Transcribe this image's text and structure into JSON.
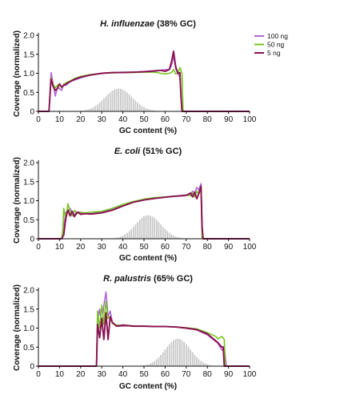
{
  "colors": {
    "100 ng": "#b266d6",
    "50 ng": "#77c41f",
    "5 ng": "#8a1150",
    "histogram": "#c8c8c8",
    "axis": "#111111"
  },
  "chart_data": [
    {
      "type": "line",
      "title_italic": "H. influenzae",
      "title_rest": " (38% GC)",
      "xlabel": "GC content (%)",
      "ylabel": "Coverage  (normalized)",
      "xlim": [
        0,
        100
      ],
      "ylim": [
        0,
        2.0
      ],
      "xticks": [
        "0",
        "10",
        "20",
        "30",
        "40",
        "50",
        "60",
        "70",
        "80",
        "90",
        "100"
      ],
      "yticks": [
        "0",
        "0.5",
        "1.0",
        "1.5",
        "2.0"
      ],
      "legend": {
        "position": "top-right",
        "entries": [
          "100 ng",
          "50 ng",
          "5 ng"
        ]
      },
      "histogram": {
        "mean": 38,
        "sd": 6.5,
        "peak": 0.6,
        "min": 21,
        "max": 55
      },
      "series": [
        {
          "name": "100 ng",
          "x": [
            0,
            5,
            6,
            7,
            8,
            9,
            10,
            11,
            12,
            13,
            15,
            17,
            20,
            25,
            30,
            35,
            40,
            45,
            50,
            55,
            58,
            60,
            62,
            63,
            64,
            65,
            66,
            67,
            67.5,
            68,
            70,
            80,
            90,
            100
          ],
          "y": [
            0,
            0,
            1.02,
            0.72,
            0.4,
            0.62,
            0.6,
            0.55,
            0.72,
            0.68,
            0.78,
            0.82,
            0.88,
            0.96,
            1.0,
            1.02,
            1.03,
            1.03,
            1.05,
            1.07,
            1.08,
            1.1,
            1.1,
            1.2,
            1.45,
            1.12,
            1.0,
            0.9,
            0.35,
            0,
            0,
            0,
            0,
            0
          ]
        },
        {
          "name": "50 ng",
          "x": [
            0,
            5,
            6,
            7,
            8,
            9,
            10,
            11,
            12,
            13,
            15,
            17,
            20,
            25,
            30,
            35,
            40,
            45,
            50,
            55,
            58,
            60,
            62,
            63,
            64,
            65,
            66,
            67,
            68,
            68.5,
            70,
            80,
            90,
            100
          ],
          "y": [
            0,
            0,
            0.88,
            0.7,
            0.62,
            0.68,
            0.72,
            0.62,
            0.7,
            0.75,
            0.8,
            0.86,
            0.92,
            0.97,
            1.0,
            1.01,
            1.02,
            1.02,
            1.03,
            1.03,
            1.0,
            0.98,
            1.0,
            1.02,
            1.1,
            0.98,
            1.0,
            1.15,
            1.0,
            0,
            0,
            0,
            0,
            0
          ]
        },
        {
          "name": "5 ng",
          "x": [
            0,
            5,
            6,
            7,
            8,
            9,
            10,
            11,
            12,
            13,
            15,
            17,
            20,
            25,
            30,
            35,
            40,
            45,
            50,
            55,
            58,
            60,
            62,
            63,
            64,
            65,
            66,
            67,
            67.5,
            68,
            70,
            80,
            90,
            100
          ],
          "y": [
            0,
            0,
            0.85,
            0.65,
            0.55,
            0.6,
            0.72,
            0.64,
            0.68,
            0.72,
            0.78,
            0.84,
            0.9,
            0.96,
            1.0,
            1.02,
            1.02,
            1.03,
            1.04,
            1.06,
            1.08,
            1.05,
            1.1,
            1.3,
            1.58,
            1.18,
            1.0,
            1.02,
            0.4,
            0,
            0,
            0,
            0,
            0
          ]
        }
      ]
    },
    {
      "type": "line",
      "title_italic": "E. coli",
      "title_rest": " (51% GC)",
      "xlabel": "GC content (%)",
      "ylabel": "Coverage  (normalized)",
      "xlim": [
        0,
        100
      ],
      "ylim": [
        0,
        2.0
      ],
      "xticks": [
        "0",
        "10",
        "20",
        "30",
        "40",
        "50",
        "60",
        "70",
        "80",
        "90",
        "100"
      ],
      "yticks": [
        "0",
        "0.5",
        "1.0",
        "1.5",
        "2.0"
      ],
      "legend": null,
      "histogram": {
        "mean": 52,
        "sd": 6,
        "peak": 0.62,
        "min": 36,
        "max": 68
      },
      "series": [
        {
          "name": "100 ng",
          "x": [
            0,
            11,
            12,
            13,
            14,
            15,
            16,
            17,
            18,
            19,
            20,
            22,
            25,
            30,
            35,
            40,
            45,
            50,
            55,
            60,
            65,
            68,
            70,
            72,
            73,
            74,
            75,
            76,
            77,
            77.5,
            78,
            80,
            90,
            100
          ],
          "y": [
            0,
            0,
            0.3,
            0.7,
            0.72,
            0.8,
            0.7,
            0.62,
            0.72,
            0.66,
            0.68,
            0.66,
            0.66,
            0.7,
            0.78,
            0.88,
            0.97,
            1.03,
            1.07,
            1.1,
            1.12,
            1.14,
            1.15,
            1.18,
            1.25,
            1.2,
            1.35,
            1.28,
            1.45,
            0.4,
            0,
            0,
            0,
            0
          ]
        },
        {
          "name": "50 ng",
          "x": [
            0,
            11,
            11.5,
            12,
            13,
            14,
            15,
            16,
            17,
            18,
            19,
            20,
            22,
            25,
            30,
            35,
            40,
            45,
            50,
            55,
            60,
            65,
            68,
            70,
            72,
            73,
            74,
            75,
            76,
            77,
            77.5,
            80,
            90,
            100
          ],
          "y": [
            0,
            0,
            0.2,
            0.8,
            0.5,
            0.92,
            0.72,
            0.6,
            0.74,
            0.7,
            0.66,
            0.7,
            0.68,
            0.7,
            0.72,
            0.8,
            0.9,
            0.98,
            1.04,
            1.08,
            1.1,
            1.12,
            1.13,
            1.15,
            1.13,
            1.2,
            1.1,
            1.25,
            1.18,
            1.32,
            0,
            0,
            0,
            0
          ]
        },
        {
          "name": "5 ng",
          "x": [
            0,
            11,
            12,
            13,
            14,
            15,
            16,
            17,
            18,
            19,
            20,
            22,
            25,
            30,
            35,
            40,
            45,
            50,
            55,
            60,
            65,
            68,
            70,
            72,
            73,
            74,
            75,
            76,
            77,
            77.5,
            78,
            80,
            90,
            100
          ],
          "y": [
            0,
            0,
            0.1,
            0.55,
            0.75,
            0.6,
            0.72,
            0.58,
            0.66,
            0.7,
            0.64,
            0.66,
            0.65,
            0.68,
            0.75,
            0.86,
            0.96,
            1.02,
            1.06,
            1.09,
            1.12,
            1.13,
            1.14,
            1.2,
            1.1,
            1.22,
            1.05,
            1.2,
            1.38,
            0.3,
            0,
            0,
            0,
            0
          ]
        }
      ]
    },
    {
      "type": "line",
      "title_italic": "R. palustris",
      "title_rest": " (65% GC)",
      "xlabel": "GC content (%)",
      "ylabel": "Coverage  (normalized)",
      "xlim": [
        0,
        100
      ],
      "ylim": [
        0,
        2.0
      ],
      "xticks": [
        "0",
        "10",
        "20",
        "30",
        "40",
        "50",
        "60",
        "70",
        "80",
        "90",
        "100"
      ],
      "yticks": [
        "0",
        "0.5",
        "1.0",
        "1.5",
        "2.0"
      ],
      "legend": null,
      "histogram": {
        "mean": 66,
        "sd": 6,
        "peak": 0.72,
        "min": 49,
        "max": 84
      },
      "series": [
        {
          "name": "100 ng",
          "x": [
            0,
            27.5,
            28,
            29,
            30,
            31,
            32,
            33,
            34,
            35,
            37,
            40,
            45,
            50,
            55,
            60,
            65,
            70,
            75,
            80,
            85,
            86,
            87,
            88,
            89,
            90,
            100
          ],
          "y": [
            0,
            0,
            1.2,
            1.5,
            1.05,
            1.6,
            1.95,
            1.3,
            1.45,
            1.15,
            1.05,
            1.05,
            1.06,
            1.05,
            1.04,
            1.04,
            1.03,
            1.0,
            0.95,
            0.82,
            0.6,
            0.5,
            0.42,
            0.52,
            0,
            0,
            0
          ]
        },
        {
          "name": "50 ng",
          "x": [
            0,
            27.5,
            28,
            29,
            30,
            31,
            32,
            33,
            34,
            35,
            37,
            40,
            45,
            50,
            55,
            60,
            65,
            70,
            75,
            80,
            84,
            85,
            86,
            87,
            88,
            88.5,
            90,
            100
          ],
          "y": [
            0,
            0,
            1.45,
            1.0,
            1.6,
            1.1,
            1.7,
            1.25,
            1.3,
            1.12,
            1.08,
            1.07,
            1.06,
            1.05,
            1.04,
            1.04,
            1.03,
            1.01,
            0.98,
            0.88,
            0.78,
            0.72,
            0.75,
            0.78,
            0.7,
            0,
            0,
            0
          ]
        },
        {
          "name": "5 ng",
          "x": [
            0,
            27.5,
            28,
            29,
            30,
            31,
            32,
            33,
            34,
            35,
            37,
            40,
            45,
            50,
            55,
            60,
            65,
            70,
            75,
            80,
            85,
            86,
            87,
            87.5,
            88,
            90,
            100
          ],
          "y": [
            0,
            0,
            1.1,
            0.75,
            1.25,
            0.7,
            1.4,
            0.7,
            1.3,
            1.15,
            1.05,
            1.08,
            1.05,
            1.05,
            1.04,
            1.04,
            1.03,
            1.0,
            0.96,
            0.85,
            0.62,
            0.55,
            0.5,
            0.5,
            0,
            0,
            0
          ]
        }
      ]
    }
  ]
}
